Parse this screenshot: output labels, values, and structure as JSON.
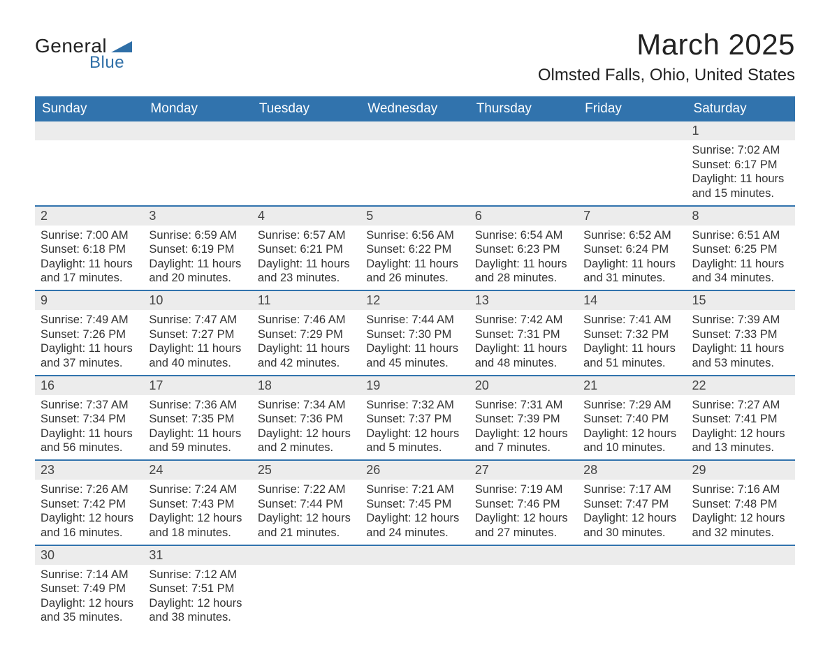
{
  "logo": {
    "text1": "General",
    "text2": "Blue",
    "triangle_color": "#2f6fa7"
  },
  "title": "March 2025",
  "location": "Olmsted Falls, Ohio, United States",
  "colors": {
    "header_bg": "#3173ad",
    "header_text": "#ffffff",
    "daynum_bg": "#ececec",
    "row_divider": "#3173ad",
    "body_text": "#333333",
    "page_bg": "#ffffff"
  },
  "typography": {
    "title_fontsize": 42,
    "location_fontsize": 24,
    "weekday_fontsize": 19,
    "daynum_fontsize": 18,
    "body_fontsize": 16.5
  },
  "weekdays": [
    "Sunday",
    "Monday",
    "Tuesday",
    "Wednesday",
    "Thursday",
    "Friday",
    "Saturday"
  ],
  "leading_blanks": 6,
  "days": [
    {
      "n": 1,
      "sunrise": "7:02 AM",
      "sunset": "6:17 PM",
      "daylight": "11 hours and 15 minutes."
    },
    {
      "n": 2,
      "sunrise": "7:00 AM",
      "sunset": "6:18 PM",
      "daylight": "11 hours and 17 minutes."
    },
    {
      "n": 3,
      "sunrise": "6:59 AM",
      "sunset": "6:19 PM",
      "daylight": "11 hours and 20 minutes."
    },
    {
      "n": 4,
      "sunrise": "6:57 AM",
      "sunset": "6:21 PM",
      "daylight": "11 hours and 23 minutes."
    },
    {
      "n": 5,
      "sunrise": "6:56 AM",
      "sunset": "6:22 PM",
      "daylight": "11 hours and 26 minutes."
    },
    {
      "n": 6,
      "sunrise": "6:54 AM",
      "sunset": "6:23 PM",
      "daylight": "11 hours and 28 minutes."
    },
    {
      "n": 7,
      "sunrise": "6:52 AM",
      "sunset": "6:24 PM",
      "daylight": "11 hours and 31 minutes."
    },
    {
      "n": 8,
      "sunrise": "6:51 AM",
      "sunset": "6:25 PM",
      "daylight": "11 hours and 34 minutes."
    },
    {
      "n": 9,
      "sunrise": "7:49 AM",
      "sunset": "7:26 PM",
      "daylight": "11 hours and 37 minutes."
    },
    {
      "n": 10,
      "sunrise": "7:47 AM",
      "sunset": "7:27 PM",
      "daylight": "11 hours and 40 minutes."
    },
    {
      "n": 11,
      "sunrise": "7:46 AM",
      "sunset": "7:29 PM",
      "daylight": "11 hours and 42 minutes."
    },
    {
      "n": 12,
      "sunrise": "7:44 AM",
      "sunset": "7:30 PM",
      "daylight": "11 hours and 45 minutes."
    },
    {
      "n": 13,
      "sunrise": "7:42 AM",
      "sunset": "7:31 PM",
      "daylight": "11 hours and 48 minutes."
    },
    {
      "n": 14,
      "sunrise": "7:41 AM",
      "sunset": "7:32 PM",
      "daylight": "11 hours and 51 minutes."
    },
    {
      "n": 15,
      "sunrise": "7:39 AM",
      "sunset": "7:33 PM",
      "daylight": "11 hours and 53 minutes."
    },
    {
      "n": 16,
      "sunrise": "7:37 AM",
      "sunset": "7:34 PM",
      "daylight": "11 hours and 56 minutes."
    },
    {
      "n": 17,
      "sunrise": "7:36 AM",
      "sunset": "7:35 PM",
      "daylight": "11 hours and 59 minutes."
    },
    {
      "n": 18,
      "sunrise": "7:34 AM",
      "sunset": "7:36 PM",
      "daylight": "12 hours and 2 minutes."
    },
    {
      "n": 19,
      "sunrise": "7:32 AM",
      "sunset": "7:37 PM",
      "daylight": "12 hours and 5 minutes."
    },
    {
      "n": 20,
      "sunrise": "7:31 AM",
      "sunset": "7:39 PM",
      "daylight": "12 hours and 7 minutes."
    },
    {
      "n": 21,
      "sunrise": "7:29 AM",
      "sunset": "7:40 PM",
      "daylight": "12 hours and 10 minutes."
    },
    {
      "n": 22,
      "sunrise": "7:27 AM",
      "sunset": "7:41 PM",
      "daylight": "12 hours and 13 minutes."
    },
    {
      "n": 23,
      "sunrise": "7:26 AM",
      "sunset": "7:42 PM",
      "daylight": "12 hours and 16 minutes."
    },
    {
      "n": 24,
      "sunrise": "7:24 AM",
      "sunset": "7:43 PM",
      "daylight": "12 hours and 18 minutes."
    },
    {
      "n": 25,
      "sunrise": "7:22 AM",
      "sunset": "7:44 PM",
      "daylight": "12 hours and 21 minutes."
    },
    {
      "n": 26,
      "sunrise": "7:21 AM",
      "sunset": "7:45 PM",
      "daylight": "12 hours and 24 minutes."
    },
    {
      "n": 27,
      "sunrise": "7:19 AM",
      "sunset": "7:46 PM",
      "daylight": "12 hours and 27 minutes."
    },
    {
      "n": 28,
      "sunrise": "7:17 AM",
      "sunset": "7:47 PM",
      "daylight": "12 hours and 30 minutes."
    },
    {
      "n": 29,
      "sunrise": "7:16 AM",
      "sunset": "7:48 PM",
      "daylight": "12 hours and 32 minutes."
    },
    {
      "n": 30,
      "sunrise": "7:14 AM",
      "sunset": "7:49 PM",
      "daylight": "12 hours and 35 minutes."
    },
    {
      "n": 31,
      "sunrise": "7:12 AM",
      "sunset": "7:51 PM",
      "daylight": "12 hours and 38 minutes."
    }
  ],
  "labels": {
    "sunrise": "Sunrise:",
    "sunset": "Sunset:",
    "daylight": "Daylight:"
  }
}
